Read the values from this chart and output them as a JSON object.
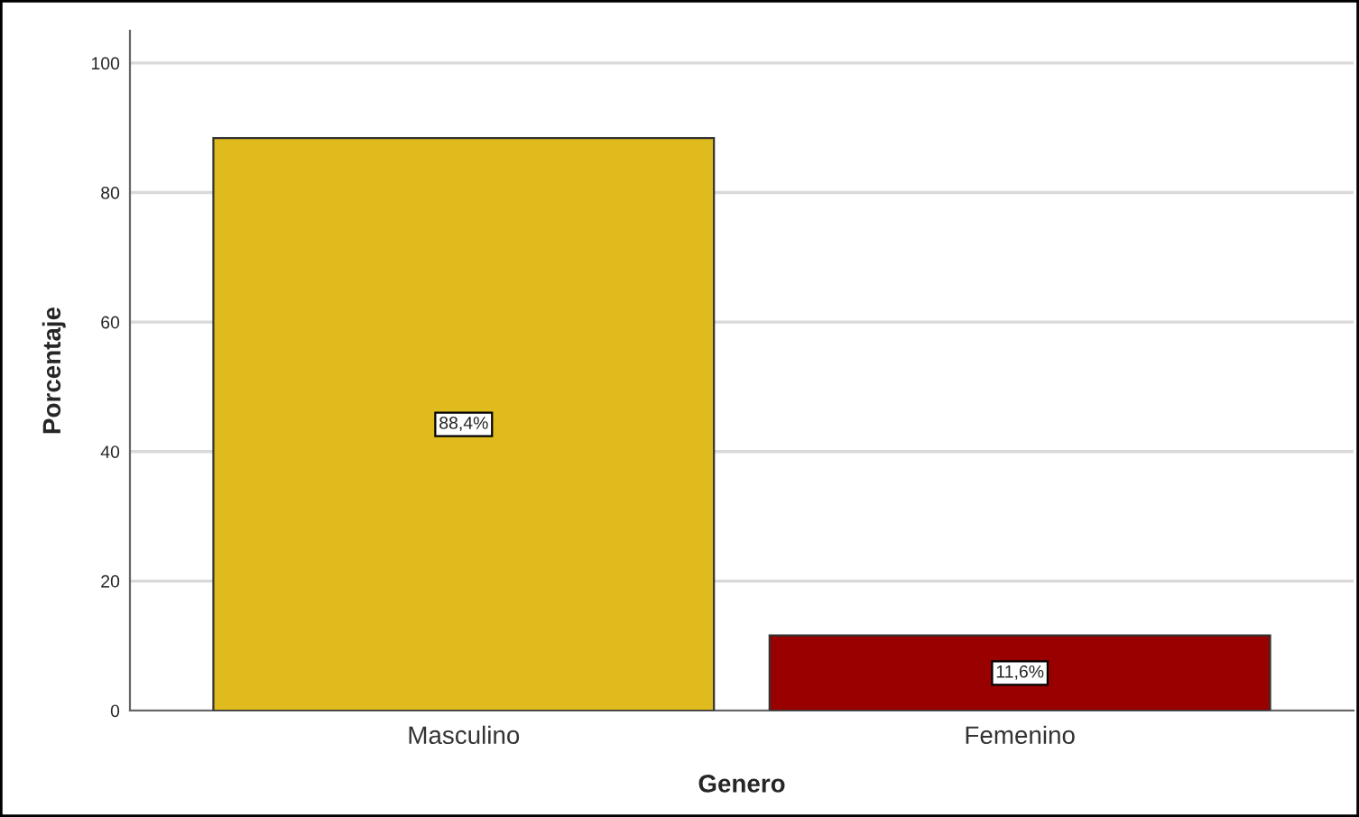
{
  "chart_data": {
    "type": "bar",
    "xlabel": "Genero",
    "ylabel": "Porcentaje",
    "categories": [
      "Masculino",
      "Femenino"
    ],
    "values": [
      88.4,
      11.6
    ],
    "colors": [
      "#e0bb1e",
      "#990000"
    ],
    "value_labels": [
      "88,4%",
      "11,6%"
    ],
    "ylim": [
      0,
      105
    ],
    "yticks": [
      0,
      20,
      40,
      60,
      80,
      100
    ],
    "grid": "y",
    "legend": false
  }
}
